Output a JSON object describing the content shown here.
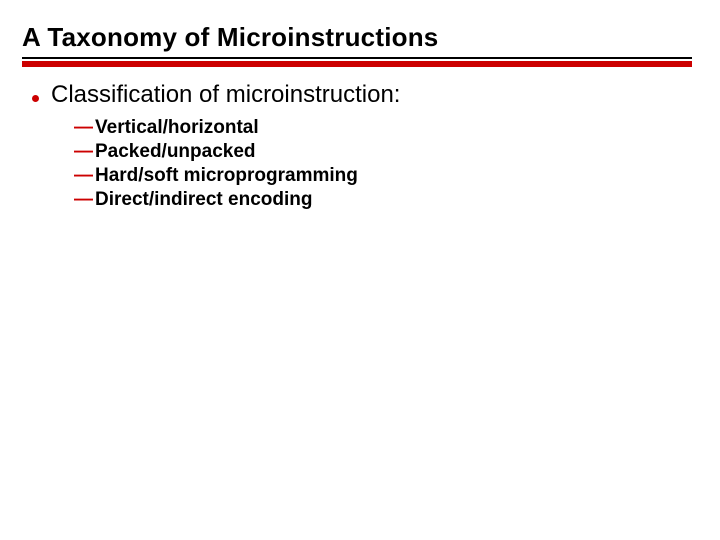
{
  "slide": {
    "title": "A Taxonomy of Microinstructions",
    "title_fontsize": 26,
    "title_color": "#000000",
    "rule_top_color": "#000000",
    "rule_main_color": "#cc0000",
    "background_color": "#ffffff",
    "bullet": {
      "text": "Classification of microinstruction:",
      "fontsize": 24,
      "color": "#000000",
      "dot_color": "#cc0000"
    },
    "subitems": {
      "fontsize": 19,
      "color": "#000000",
      "dash_color": "#cc0000",
      "dash_glyph": "—",
      "items": [
        "Vertical/horizontal",
        "Packed/unpacked",
        "Hard/soft microprogramming",
        "Direct/indirect encoding"
      ]
    }
  }
}
